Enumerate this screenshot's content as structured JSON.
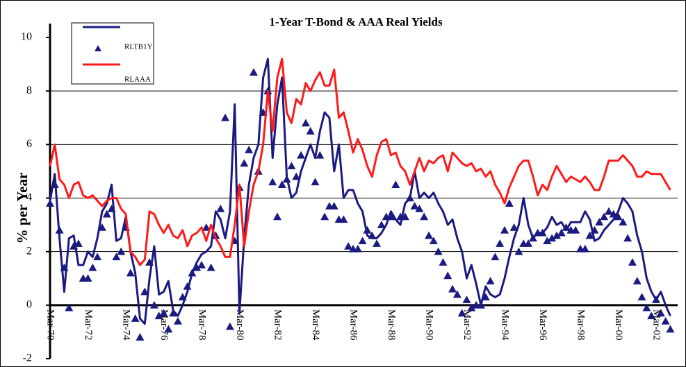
{
  "chart_data": {
    "type": "line",
    "title": "1-Year T-Bond & AAA Real Yields",
    "ylabel": "% per Year",
    "ylim": [
      -2,
      10
    ],
    "yticks": [
      -2,
      0,
      2,
      4,
      6,
      8,
      10
    ],
    "grid": true,
    "legend": "top-left",
    "categories": [
      "Mar-70",
      null,
      null,
      null,
      null,
      null,
      null,
      null,
      "Mar-72",
      null,
      null,
      null,
      null,
      null,
      null,
      null,
      "Mar-74",
      null,
      null,
      null,
      null,
      null,
      null,
      null,
      "Mar-76",
      null,
      null,
      null,
      null,
      null,
      null,
      null,
      "Mar-78",
      null,
      null,
      null,
      null,
      null,
      null,
      null,
      "Mar-80",
      null,
      null,
      null,
      null,
      null,
      null,
      null,
      "Mar-82",
      null,
      null,
      null,
      null,
      null,
      null,
      null,
      "Mar-84",
      null,
      null,
      null,
      null,
      null,
      null,
      null,
      "Mar-86",
      null,
      null,
      null,
      null,
      null,
      null,
      null,
      "Mar-88",
      null,
      null,
      null,
      null,
      null,
      null,
      null,
      "Mar-90",
      null,
      null,
      null,
      null,
      null,
      null,
      null,
      "Mar-92",
      null,
      null,
      null,
      null,
      null,
      null,
      null,
      "Mar-94",
      null,
      null,
      null,
      null,
      null,
      null,
      null,
      "Mar-96",
      null,
      null,
      null,
      null,
      null,
      null,
      null,
      "Mar-98",
      null,
      null,
      null,
      null,
      null,
      null,
      null,
      "Mar-00",
      null,
      null,
      null,
      null,
      null,
      null,
      null,
      "Mar-02",
      null,
      null,
      null
    ],
    "series": [
      {
        "color": "#1a1a80",
        "style": "line",
        "values": [
          3.9,
          4.9,
          2.5,
          0.5,
          2.5,
          2.6,
          1.5,
          1.5,
          2.0,
          1.8,
          2.5,
          3.5,
          3.8,
          4.5,
          2.4,
          2.5,
          3.3,
          2.0,
          1.2,
          -0.5,
          -0.7,
          1.0,
          2.2,
          0.4,
          0.5,
          0.9,
          -0.2,
          -0.4,
          0.0,
          0.5,
          1.2,
          1.6,
          1.9,
          2.0,
          2.2,
          3.5,
          3.2,
          2.5,
          3.5,
          7.5,
          -0.3,
          2.5,
          4.5,
          5.5,
          6.0,
          8.5,
          9.2,
          5.5,
          7.5,
          8.5,
          4.8,
          4.0,
          4.2,
          5.0,
          5.5,
          6.0,
          5.5,
          6.5,
          7.2,
          7.0,
          5.0,
          6.0,
          4.0,
          4.3,
          4.3,
          3.8,
          3.5,
          2.6,
          2.5,
          2.5,
          2.7,
          3.0,
          3.5,
          3.2,
          3.0,
          3.8,
          4.0,
          5.0,
          4.0,
          4.2,
          4.0,
          4.2,
          3.8,
          3.5,
          3.0,
          3.2,
          2.5,
          2.0,
          1.0,
          1.5,
          0.8,
          0.0,
          0.7,
          0.4,
          0.3,
          0.4,
          1.0,
          1.8,
          2.5,
          3.0,
          4.0,
          3.0,
          2.5,
          2.7,
          2.7,
          2.9,
          3.3,
          3.0,
          3.1,
          2.8,
          3.1,
          3.1,
          3.1,
          3.5,
          3.2,
          2.4,
          2.5,
          2.8,
          3.0,
          3.2,
          3.5,
          4.0,
          3.8,
          3.5,
          2.6,
          2.0,
          1.0,
          0.5,
          0.2,
          0.5,
          0.0,
          -0.4
        ]
      },
      {
        "name": "RLTB1Y",
        "color": "#1a1a80",
        "style": "marker",
        "values": [
          3.8,
          4.5,
          2.8,
          1.4,
          -0.1,
          2.2,
          2.3,
          1.0,
          1.0,
          1.4,
          1.8,
          2.9,
          3.4,
          3.6,
          1.8,
          2.0,
          2.9,
          1.2,
          -0.5,
          -1.2,
          0.5,
          1.6,
          0.0,
          -0.4,
          -0.3,
          -0.9,
          -0.3,
          -0.6,
          0.3,
          0.7,
          1.2,
          1.4,
          1.5,
          2.9,
          1.4,
          2.6,
          3.6,
          7.0,
          -0.8,
          2.4,
          4.4,
          5.3,
          5.8,
          8.7,
          5.0,
          7.2,
          8.0,
          4.6,
          3.3,
          4.5,
          4.7,
          5.2,
          4.8,
          5.6,
          6.8,
          6.5,
          4.6,
          5.6,
          3.3,
          3.7,
          3.7,
          3.2,
          3.2,
          2.2,
          2.1,
          2.1,
          2.4,
          2.8,
          2.6,
          2.3,
          3.0,
          3.3,
          3.3,
          4.5,
          3.3,
          3.3,
          4.0,
          3.7,
          3.6,
          3.3,
          2.6,
          2.4,
          2.0,
          1.6,
          1.1,
          0.6,
          0.4,
          -0.3,
          0.2,
          -0.1,
          0.0,
          0.0,
          0.3,
          0.9,
          1.8,
          2.3,
          2.8,
          3.8,
          2.9,
          2.0,
          2.3,
          2.3,
          2.5,
          2.7,
          2.7,
          2.4,
          2.5,
          2.6,
          2.7,
          2.9,
          2.8,
          2.8,
          2.1,
          2.1,
          2.6,
          2.8,
          3.1,
          3.3,
          3.5,
          3.4,
          3.3,
          3.1,
          2.5,
          1.6,
          0.9,
          0.3,
          -0.1,
          -0.4,
          0.2,
          -0.3,
          -0.6,
          -0.9
        ]
      },
      {
        "name": "RLAAA",
        "color": "#ff1a1a",
        "style": "line",
        "values": [
          5.2,
          6.0,
          4.7,
          4.5,
          4.0,
          4.5,
          4.6,
          4.1,
          4.0,
          4.1,
          3.9,
          3.7,
          3.9,
          4.0,
          4.0,
          3.6,
          3.4,
          2.0,
          1.8,
          1.5,
          1.7,
          3.5,
          3.4,
          3.0,
          2.7,
          3.0,
          2.6,
          2.5,
          2.8,
          2.2,
          2.6,
          2.7,
          2.9,
          2.4,
          3.0,
          2.5,
          2.2,
          1.8,
          1.8,
          3.0,
          4.5,
          2.2,
          3.5,
          4.5,
          5.0,
          6.0,
          8.0,
          6.5,
          8.5,
          9.2,
          7.2,
          6.8,
          7.7,
          7.5,
          8.3,
          8.0,
          8.4,
          8.7,
          8.2,
          8.2,
          8.8,
          7.0,
          7.2,
          6.5,
          5.7,
          6.2,
          5.8,
          5.2,
          4.8,
          5.6,
          6.1,
          6.2,
          5.6,
          5.7,
          5.2,
          5.0,
          4.5,
          5.0,
          5.5,
          5.0,
          5.4,
          5.3,
          5.5,
          5.6,
          5.0,
          5.7,
          5.5,
          5.3,
          5.2,
          5.3,
          5.0,
          5.1,
          4.8,
          5.0,
          4.5,
          4.2,
          3.8,
          4.4,
          4.8,
          5.2,
          5.4,
          5.4,
          4.8,
          4.1,
          4.5,
          4.3,
          4.8,
          5.2,
          4.9,
          4.6,
          4.8,
          4.7,
          4.6,
          4.8,
          4.6,
          4.3,
          4.3,
          4.8,
          5.4,
          5.4,
          5.4,
          5.6,
          5.4,
          5.2,
          4.8,
          4.8,
          5.0,
          4.9,
          4.9,
          4.9,
          4.6,
          4.3
        ]
      }
    ]
  }
}
